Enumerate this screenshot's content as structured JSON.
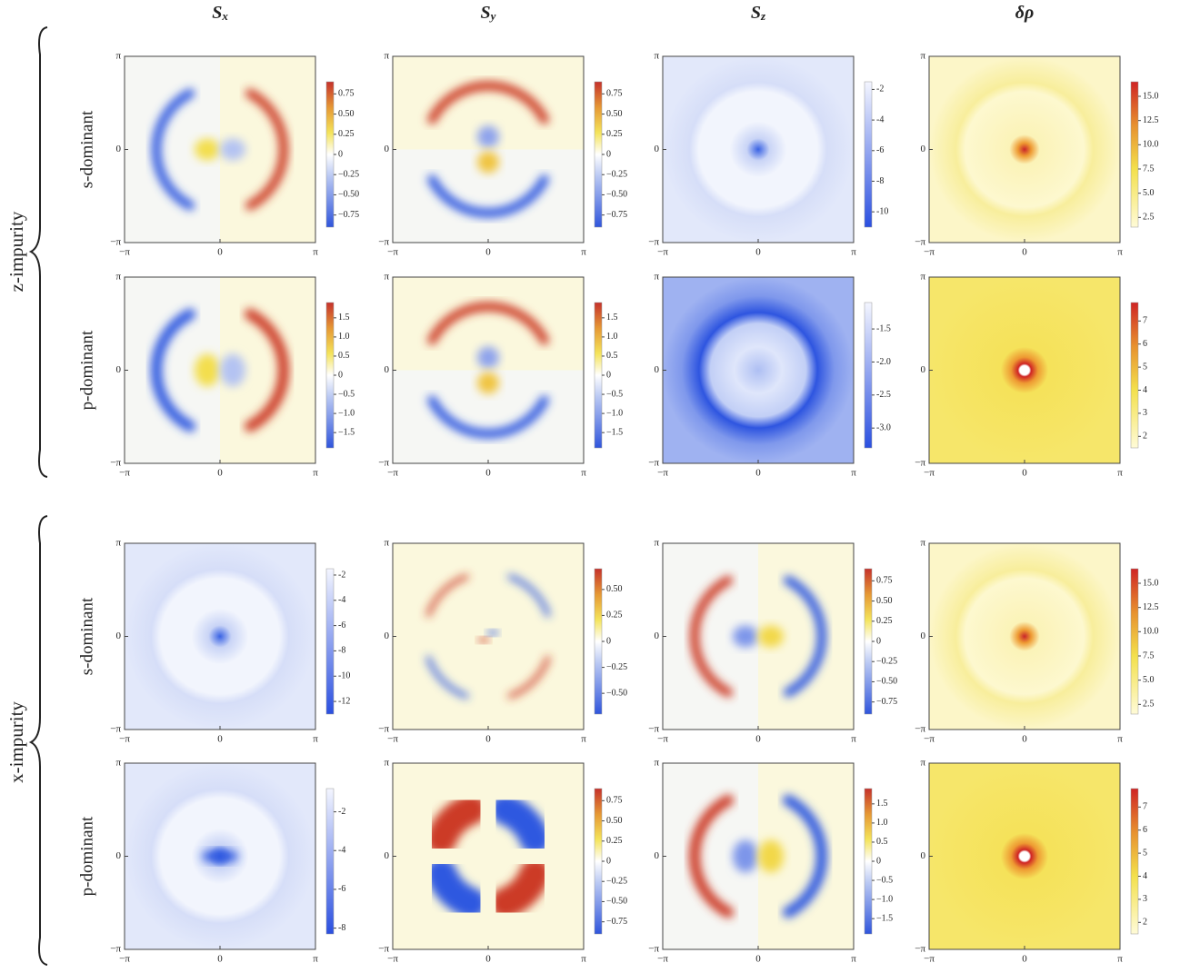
{
  "columns": [
    {
      "symbol": "S",
      "sub": "x"
    },
    {
      "symbol": "S",
      "sub": "y"
    },
    {
      "symbol": "S",
      "sub": "z"
    },
    {
      "symbol": "δρ"
    }
  ],
  "axis_ticks": [
    {
      "value": -3.14159,
      "label": "−π"
    },
    0,
    {
      "value": 3.14159,
      "label": "π"
    }
  ],
  "groups": [
    {
      "label": "z-impurity",
      "rows": [
        {
          "label": "s-dominant",
          "panels": [
            {
              "colormap": "diverging",
              "clim": [
                -0.9,
                0.9
              ],
              "ticks": [
                {
                  "value": 0.75,
                  "label": "0.75"
                },
                {
                  "value": 0.5,
                  "label": "0.50"
                },
                {
                  "value": 0.25,
                  "label": "0.25"
                },
                0,
                {
                  "value": -0.25,
                  "label": "−0.25"
                },
                {
                  "value": -0.5,
                  "label": "−0.50"
                },
                {
                  "value": -0.75,
                  "label": "−0.75"
                }
              ]
            },
            {
              "colormap": "diverging",
              "clim": [
                -0.9,
                0.9
              ],
              "ticks": [
                {
                  "value": 0.75,
                  "label": "0.75"
                },
                {
                  "value": 0.5,
                  "label": "0.50"
                },
                {
                  "value": 0.25,
                  "label": "0.25"
                },
                0,
                {
                  "value": -0.25,
                  "label": "−0.25"
                },
                {
                  "value": -0.5,
                  "label": "−0.50"
                },
                {
                  "value": -0.75,
                  "label": "−0.75"
                }
              ]
            },
            {
              "colormap": "blue",
              "clim": [
                -11,
                -1.5
              ],
              "ticks": [
                -2,
                -4,
                -6,
                -8,
                -10
              ]
            },
            {
              "colormap": "red",
              "clim": [
                1.5,
                16.5
              ],
              "ticks": [
                {
                  "value": 15,
                  "label": "15.0"
                },
                12.5,
                {
                  "value": 10,
                  "label": "10.0"
                },
                7.5,
                {
                  "value": 5,
                  "label": "5.0"
                },
                2.5
              ]
            }
          ]
        },
        {
          "label": "p-dominant",
          "panels": [
            {
              "colormap": "diverging",
              "clim": [
                -1.9,
                1.9
              ],
              "ticks": [
                1.5,
                {
                  "value": 1,
                  "label": "1.0"
                },
                0.5,
                0,
                {
                  "value": -0.5,
                  "label": "−0.5"
                },
                {
                  "value": -1,
                  "label": "−1.0"
                },
                {
                  "value": -1.5,
                  "label": "−1.5"
                }
              ]
            },
            {
              "colormap": "diverging",
              "clim": [
                -1.9,
                1.9
              ],
              "ticks": [
                1.5,
                {
                  "value": 1,
                  "label": "1.0"
                },
                0.5,
                0,
                {
                  "value": -0.5,
                  "label": "−0.5"
                },
                {
                  "value": -1,
                  "label": "−1.0"
                },
                {
                  "value": -1.5,
                  "label": "−1.5"
                }
              ]
            },
            {
              "colormap": "blue",
              "clim": [
                -3.3,
                -1.1
              ],
              "ticks": [
                -1.5,
                {
                  "value": -2,
                  "label": "-2.0"
                },
                -2.5,
                {
                  "value": -3,
                  "label": "-3.0"
                }
              ]
            },
            {
              "colormap": "red",
              "clim": [
                1.5,
                7.8
              ],
              "ticks": [
                7,
                6,
                5,
                4,
                3,
                2
              ]
            }
          ]
        }
      ]
    },
    {
      "label": "x-impurity",
      "rows": [
        {
          "label": "s-dominant",
          "panels": [
            {
              "colormap": "blue",
              "clim": [
                -13,
                -1.5
              ],
              "ticks": [
                -2,
                -4,
                -6,
                -8,
                -10,
                -12
              ]
            },
            {
              "colormap": "diverging",
              "clim": [
                -0.7,
                0.7
              ],
              "ticks": [
                {
                  "value": 0.5,
                  "label": "0.50"
                },
                0.25,
                0,
                {
                  "value": -0.25,
                  "label": "−0.25"
                },
                {
                  "value": -0.5,
                  "label": "−0.50"
                }
              ]
            },
            {
              "colormap": "diverging",
              "clim": [
                -0.9,
                0.9
              ],
              "ticks": [
                0.75,
                {
                  "value": 0.5,
                  "label": "0.50"
                },
                0.25,
                0,
                {
                  "value": -0.25,
                  "label": "−0.25"
                },
                {
                  "value": -0.5,
                  "label": "−0.50"
                },
                {
                  "value": -0.75,
                  "label": "−0.75"
                }
              ]
            },
            {
              "colormap": "red",
              "clim": [
                1.5,
                16.5
              ],
              "ticks": [
                {
                  "value": 15,
                  "label": "15.0"
                },
                12.5,
                {
                  "value": 10,
                  "label": "10.0"
                },
                7.5,
                {
                  "value": 5,
                  "label": "5.0"
                },
                2.5
              ]
            }
          ]
        },
        {
          "label": "p-dominant",
          "panels": [
            {
              "colormap": "blue",
              "clim": [
                -8.3,
                -0.8
              ],
              "ticks": [
                -2,
                -4,
                -6,
                -8
              ]
            },
            {
              "colormap": "diverging",
              "clim": [
                -0.9,
                0.9
              ],
              "ticks": [
                0.75,
                {
                  "value": 0.5,
                  "label": "0.50"
                },
                0.25,
                0,
                {
                  "value": -0.25,
                  "label": "−0.25"
                },
                {
                  "value": -0.5,
                  "label": "−0.50"
                },
                {
                  "value": -0.75,
                  "label": "−0.75"
                }
              ]
            },
            {
              "colormap": "diverging",
              "clim": [
                -1.9,
                1.9
              ],
              "ticks": [
                1.5,
                {
                  "value": 1,
                  "label": "1.0"
                },
                0.5,
                0,
                {
                  "value": -0.5,
                  "label": "−0.5"
                },
                {
                  "value": -1,
                  "label": "−1.0"
                },
                {
                  "value": -1.5,
                  "label": "−1.5"
                }
              ]
            },
            {
              "colormap": "red",
              "clim": [
                1.5,
                7.8
              ],
              "ticks": [
                7,
                6,
                5,
                4,
                3,
                2
              ]
            }
          ]
        }
      ]
    }
  ]
}
